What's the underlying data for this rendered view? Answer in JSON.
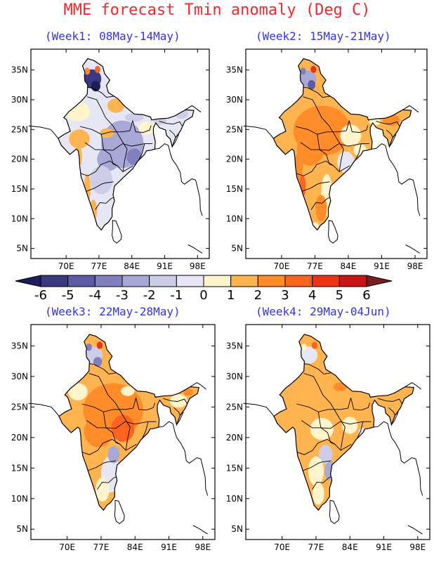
{
  "title": "MME forecast Tmin anomaly (Deg C)",
  "panels": [
    {
      "label": "(Week1: 08May-14May)",
      "scheme": "cool"
    },
    {
      "label": "(Week2: 15May-21May)",
      "scheme": "warm"
    },
    {
      "label": "(Week3: 22May-28May)",
      "scheme": "hot"
    },
    {
      "label": "(Week4: 29May-04Jun)",
      "scheme": "mild"
    }
  ],
  "axes": {
    "lat_ticks": [
      "35N",
      "30N",
      "25N",
      "20N",
      "15N",
      "10N",
      "5N"
    ],
    "lon_ticks": [
      "70E",
      "77E",
      "84E",
      "91E",
      "98E"
    ]
  },
  "colorbar": {
    "labels": [
      "-6",
      "-5",
      "-4",
      "-3",
      "-2",
      "-1",
      "0",
      "1",
      "2",
      "3",
      "4",
      "5",
      "6"
    ],
    "colors": [
      "#1e1e5a",
      "#3a3a82",
      "#5c5ca6",
      "#8080bf",
      "#a8a8d6",
      "#cdcde8",
      "#e6e6f5",
      "#fff5cc",
      "#ffb450",
      "#ff8c28",
      "#ff641e",
      "#f03214",
      "#c81414",
      "#781e1e"
    ]
  }
}
